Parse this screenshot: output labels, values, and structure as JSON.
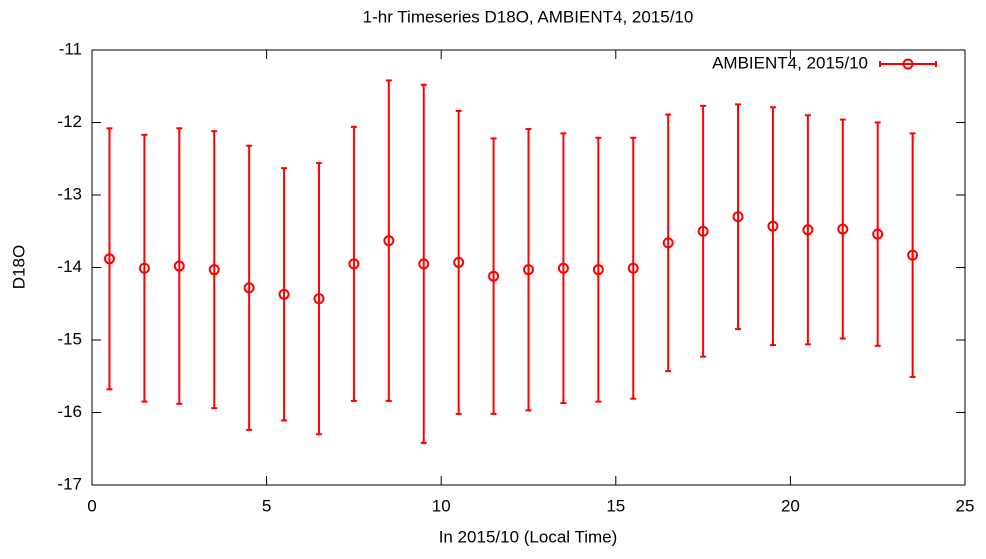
{
  "chart_data": {
    "type": "errorbar",
    "title": "1-hr Timeseries D18O, AMBIENT4, 2015/10",
    "xlabel": "In 2015/10 (Local Time)",
    "ylabel": "D18O",
    "xlim": [
      0,
      25
    ],
    "xticks": [
      0,
      5,
      10,
      15,
      20,
      25
    ],
    "ylim": [
      -17,
      -11
    ],
    "yticks": [
      -17,
      -16,
      -15,
      -14,
      -13,
      -12,
      -11
    ],
    "legend": "top-right",
    "series": [
      {
        "name": "AMBIENT4, 2015/10",
        "color": "#ff0000",
        "x": [
          0.5,
          1.5,
          2.5,
          3.5,
          4.5,
          5.5,
          6.5,
          7.5,
          8.5,
          9.5,
          10.5,
          11.5,
          12.5,
          13.5,
          14.5,
          15.5,
          16.5,
          17.5,
          18.5,
          19.5,
          20.5,
          21.5,
          22.5,
          23.5
        ],
        "values": [
          -13.88,
          -14.01,
          -13.98,
          -14.03,
          -14.28,
          -14.37,
          -14.43,
          -13.95,
          -13.63,
          -13.95,
          -13.93,
          -14.12,
          -14.03,
          -14.01,
          -14.03,
          -14.01,
          -13.66,
          -13.5,
          -13.3,
          -13.43,
          -13.48,
          -13.47,
          -13.54,
          -13.83
        ],
        "yerr": [
          1.8,
          1.84,
          1.9,
          1.91,
          1.96,
          1.74,
          1.87,
          1.89,
          2.21,
          2.47,
          2.09,
          1.9,
          1.94,
          1.86,
          1.82,
          1.8,
          1.77,
          1.73,
          1.55,
          1.64,
          1.58,
          1.51,
          1.54,
          1.68
        ]
      }
    ]
  }
}
